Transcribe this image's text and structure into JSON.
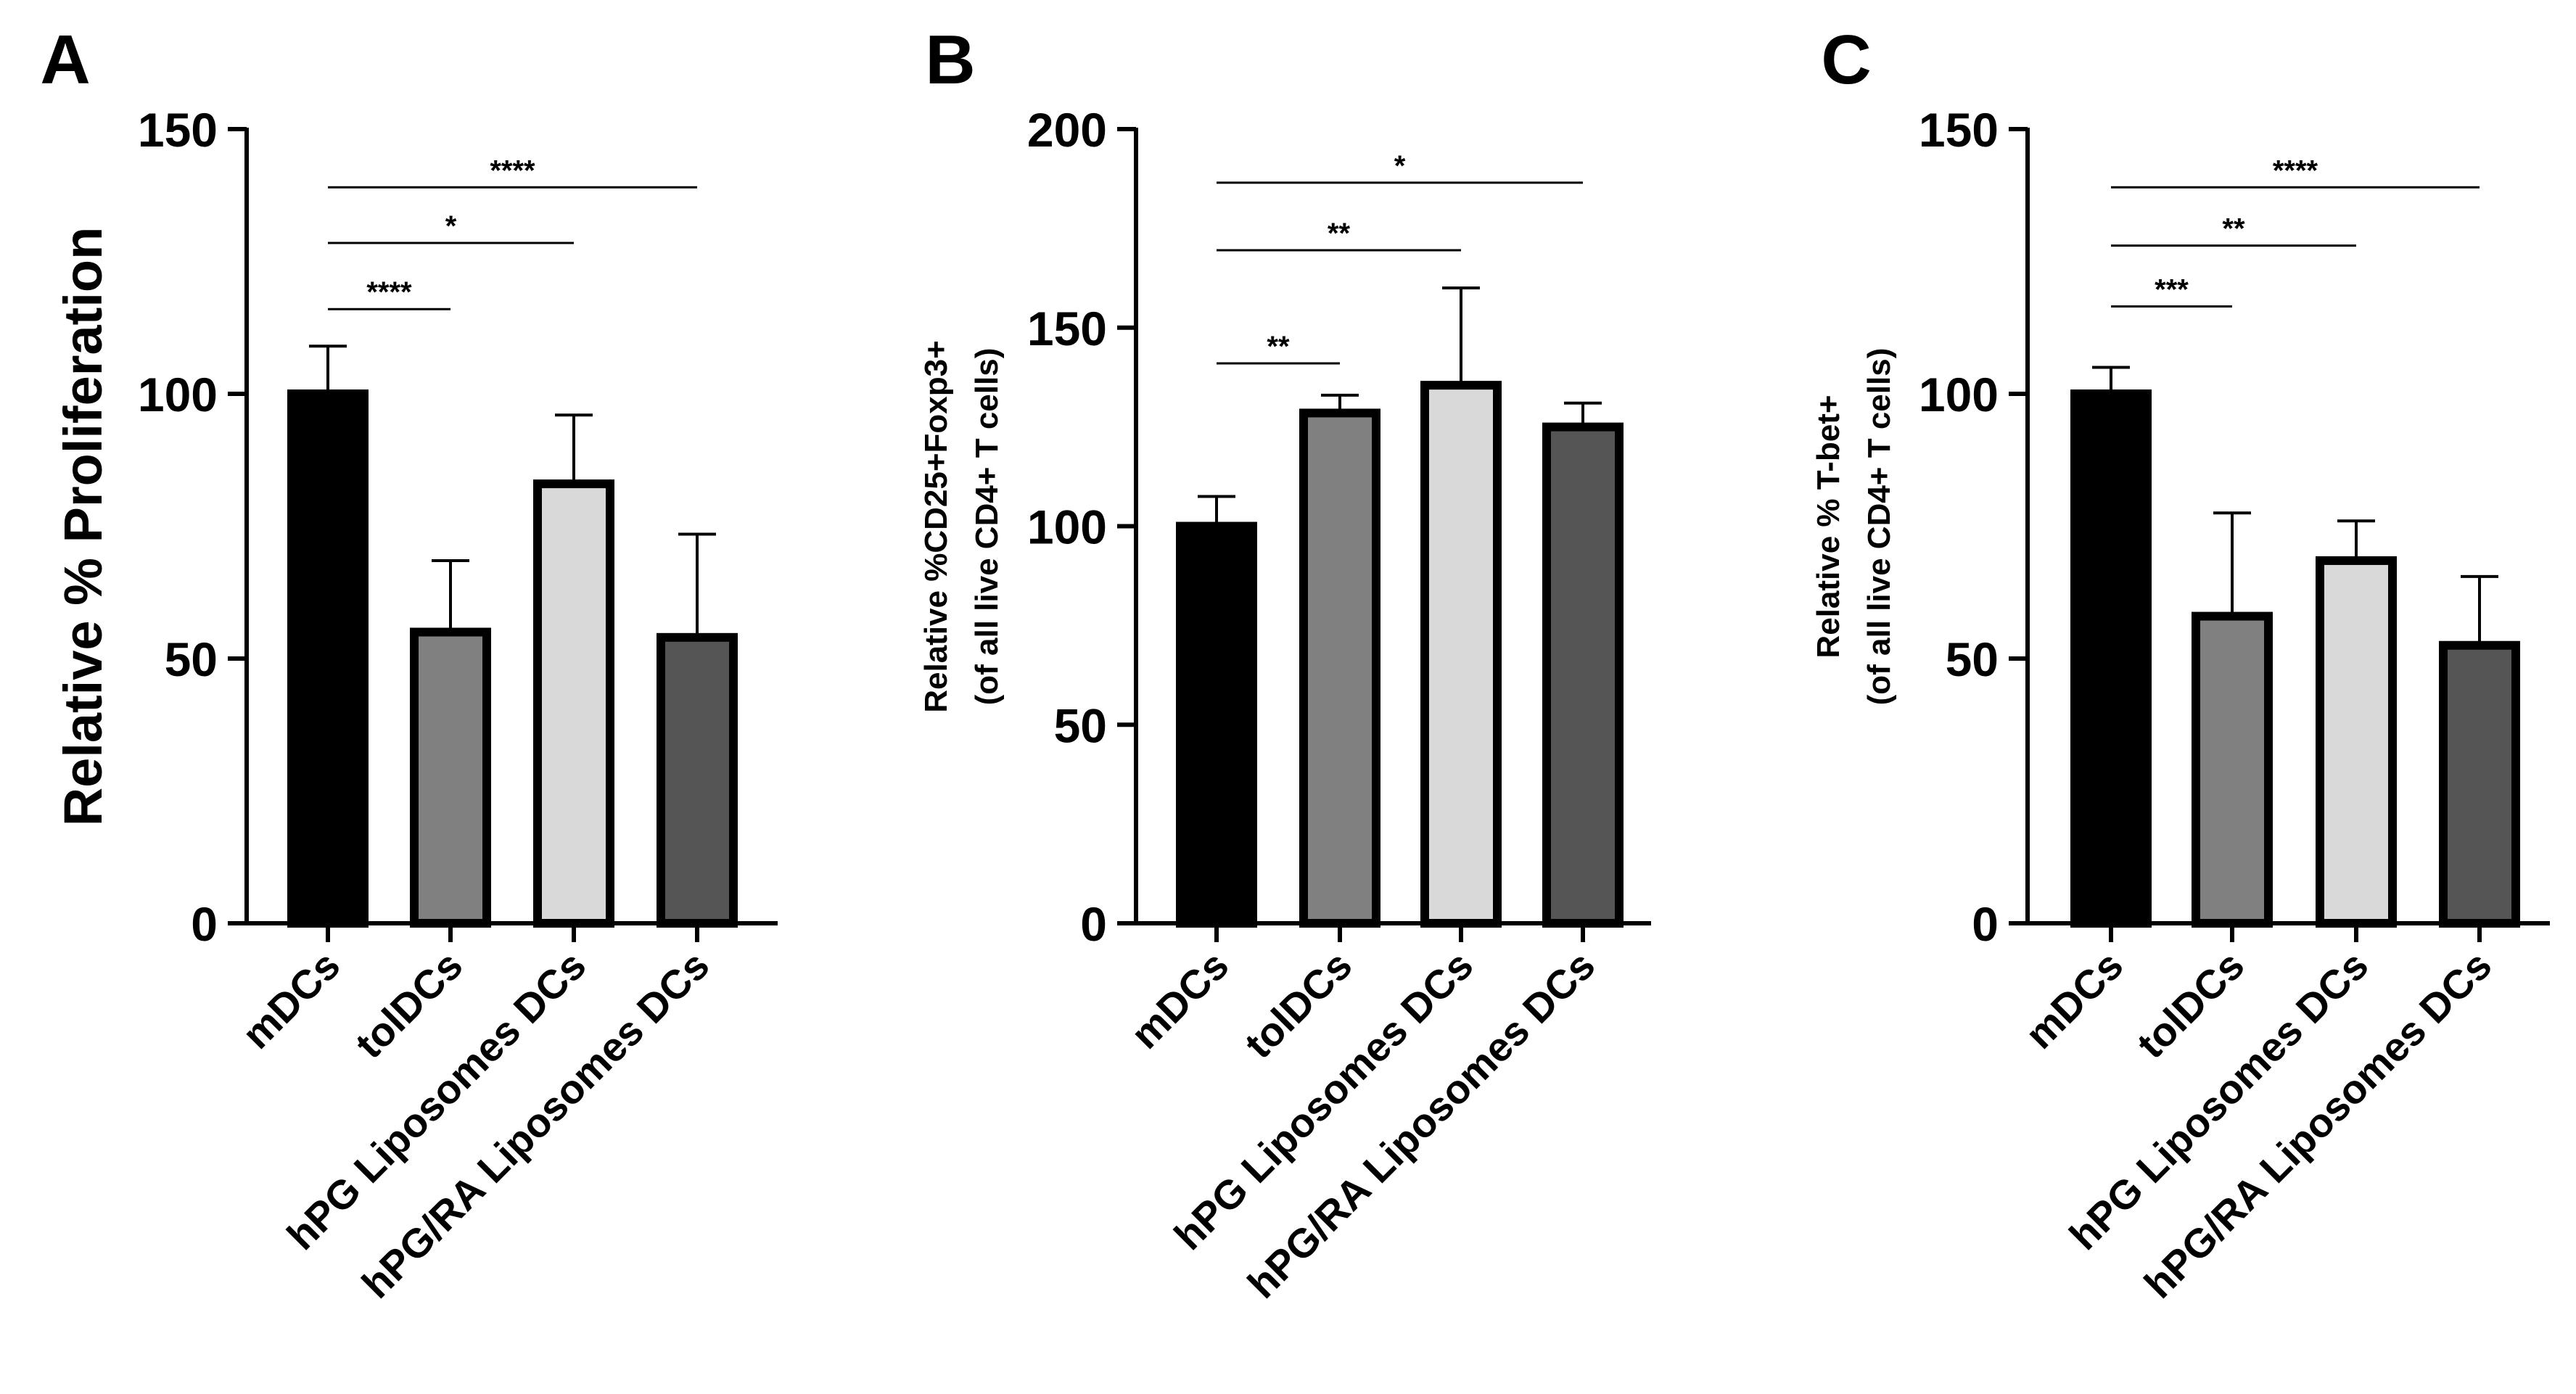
{
  "chart_data": [
    {
      "panel": "A",
      "type": "bar",
      "ylabel": "Relative % Proliferation",
      "ylim": [
        0,
        150
      ],
      "yticks": [
        0,
        50,
        100,
        150
      ],
      "categories": [
        "mDCs",
        "tolDCs",
        "hPG Liposomes DCs",
        "hPG/RA Liposomes DCs"
      ],
      "values": [
        100,
        55,
        83,
        54
      ],
      "errors": [
        9,
        13.5,
        13,
        19.5
      ],
      "bar_colors": [
        "#000000",
        "#808080",
        "#d9d9d9",
        "#555555"
      ],
      "significance": [
        {
          "from": 0,
          "to": 1,
          "label": "****",
          "y": 116
        },
        {
          "from": 0,
          "to": 2,
          "label": "*",
          "y": 128.5
        },
        {
          "from": 0,
          "to": 3,
          "label": "****",
          "y": 139
        }
      ]
    },
    {
      "panel": "B",
      "type": "bar",
      "ylabel_line1": "Relative %CD25+Foxp3+",
      "ylabel_line2": "(of all live CD4+ T cells)",
      "ylim": [
        0,
        200
      ],
      "yticks": [
        0,
        50,
        100,
        150,
        200
      ],
      "categories": [
        "mDCs",
        "tolDCs",
        "hPG Liposomes DCs",
        "hPG/RA Liposomes DCs"
      ],
      "values": [
        100,
        128.5,
        135.5,
        125
      ],
      "errors": [
        7.5,
        4.5,
        24.5,
        6
      ],
      "bar_colors": [
        "#000000",
        "#808080",
        "#d9d9d9",
        "#555555"
      ],
      "significance": [
        {
          "from": 0,
          "to": 1,
          "label": "**",
          "y": 141
        },
        {
          "from": 0,
          "to": 2,
          "label": "**",
          "y": 169.5
        },
        {
          "from": 0,
          "to": 3,
          "label": "*",
          "y": 186.5
        }
      ]
    },
    {
      "panel": "C",
      "type": "bar",
      "ylabel_line1": "Relative % T-bet+",
      "ylabel_line2": "(of all live CD4+ T cells)",
      "ylim": [
        0,
        150
      ],
      "yticks": [
        0,
        50,
        100,
        150
      ],
      "categories": [
        "mDCs",
        "tolDCs",
        "hPG Liposomes DCs",
        "hPG/RA Liposomes DCs"
      ],
      "values": [
        100,
        58,
        68.5,
        52.5
      ],
      "errors": [
        5,
        19.5,
        7.5,
        13
      ],
      "bar_colors": [
        "#000000",
        "#808080",
        "#d9d9d9",
        "#555555"
      ],
      "significance": [
        {
          "from": 0,
          "to": 1,
          "label": "***",
          "y": 116.5
        },
        {
          "from": 0,
          "to": 2,
          "label": "**",
          "y": 128
        },
        {
          "from": 0,
          "to": 3,
          "label": "****",
          "y": 139
        }
      ]
    }
  ]
}
